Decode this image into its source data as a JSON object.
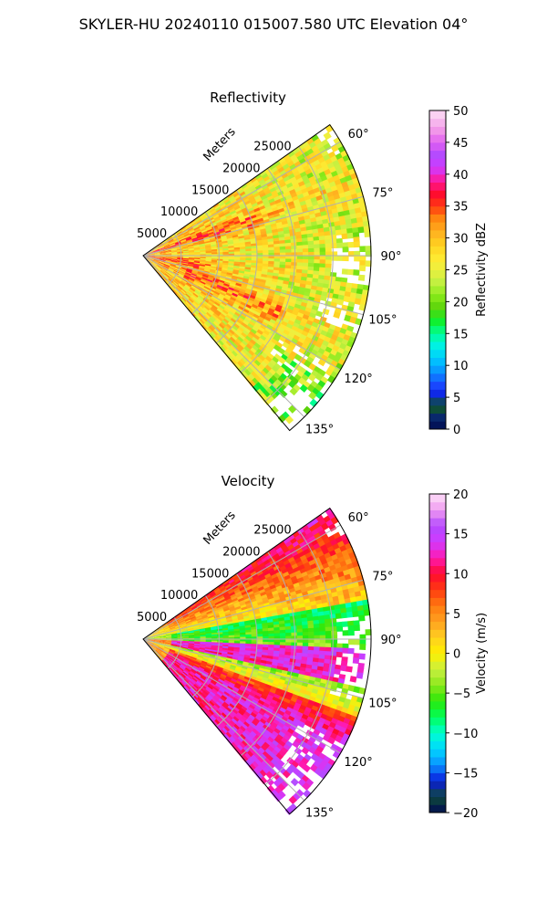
{
  "figure": {
    "title": "SKYLER-HU  20240110  015007.580 UTC Elevation 04°"
  },
  "chart_data": [
    {
      "type": "heatmap",
      "panel": "reflectivity",
      "title": "Reflectivity",
      "range_label": "Meters",
      "range_ticks": [
        5000,
        10000,
        15000,
        20000,
        25000
      ],
      "range_max_m": 30000,
      "azimuth_ticks_deg": [
        60,
        75,
        90,
        105,
        120,
        135
      ],
      "azimuth_tick_labels": [
        "60°",
        "75°",
        "90°",
        "105°",
        "120°",
        "135°"
      ],
      "azimuth_min_deg": 55,
      "azimuth_max_deg": 140,
      "grid": true,
      "colorbar": {
        "label": "Reflectivity dBZ",
        "min": 0,
        "max": 50,
        "ticks": [
          0,
          5,
          10,
          15,
          20,
          25,
          30,
          35,
          40,
          45,
          50
        ],
        "position": "right"
      },
      "colormap": [
        [
          0,
          "#000a50"
        ],
        [
          2,
          "#0a2a6e"
        ],
        [
          3,
          "#0f4a3a"
        ],
        [
          4,
          "#115a2a"
        ],
        [
          5,
          "#0a1adc"
        ],
        [
          7,
          "#1a4aff"
        ],
        [
          9,
          "#0a90ff"
        ],
        [
          11,
          "#00c8ff"
        ],
        [
          13,
          "#00f0e8"
        ],
        [
          15,
          "#00ff9a"
        ],
        [
          17,
          "#10ef2a"
        ],
        [
          19,
          "#5ad20a"
        ],
        [
          21,
          "#8aea1a"
        ],
        [
          23,
          "#c0f040"
        ],
        [
          25,
          "#ecf040"
        ],
        [
          27,
          "#ffe830"
        ],
        [
          29,
          "#ffd020"
        ],
        [
          31,
          "#ffb020"
        ],
        [
          33,
          "#ff8a10"
        ],
        [
          35,
          "#ff3a10"
        ],
        [
          37,
          "#ff0a30"
        ],
        [
          39,
          "#ff1a9a"
        ],
        [
          41,
          "#d03aff"
        ],
        [
          43,
          "#b24aff"
        ],
        [
          45,
          "#e060f0"
        ],
        [
          47,
          "#f29ae8"
        ],
        [
          50,
          "#fde0f4"
        ]
      ]
    },
    {
      "type": "heatmap",
      "panel": "velocity",
      "title": "Velocity",
      "range_label": "Meters",
      "range_ticks": [
        5000,
        10000,
        15000,
        20000,
        25000
      ],
      "range_max_m": 30000,
      "azimuth_ticks_deg": [
        60,
        75,
        90,
        105,
        120,
        135
      ],
      "azimuth_tick_labels": [
        "60°",
        "75°",
        "90°",
        "105°",
        "120°",
        "135°"
      ],
      "azimuth_min_deg": 55,
      "azimuth_max_deg": 140,
      "grid": true,
      "colorbar": {
        "label": "Velocity (m/s)",
        "min": -20,
        "max": 20,
        "ticks": [
          -20,
          -15,
          -10,
          -5,
          0,
          5,
          10,
          15,
          20
        ],
        "position": "right"
      },
      "colormap": [
        [
          -20,
          "#000a50"
        ],
        [
          -18,
          "#0f4a3a"
        ],
        [
          -16,
          "#0a1adc"
        ],
        [
          -14,
          "#0a90ff"
        ],
        [
          -12,
          "#00d8ff"
        ],
        [
          -10,
          "#00ffd0"
        ],
        [
          -8,
          "#00ff5a"
        ],
        [
          -6,
          "#2ae80a"
        ],
        [
          -4,
          "#8ae81a"
        ],
        [
          -2,
          "#c8f040"
        ],
        [
          0,
          "#fff000"
        ],
        [
          2,
          "#ffd020"
        ],
        [
          4,
          "#ffa020"
        ],
        [
          6,
          "#ff7a10"
        ],
        [
          8,
          "#ff3a10"
        ],
        [
          10,
          "#ff0a30"
        ],
        [
          12,
          "#ff1ab0"
        ],
        [
          14,
          "#d03aff"
        ],
        [
          16,
          "#b24aff"
        ],
        [
          18,
          "#f09af0"
        ],
        [
          20,
          "#fde0f8"
        ]
      ]
    }
  ]
}
